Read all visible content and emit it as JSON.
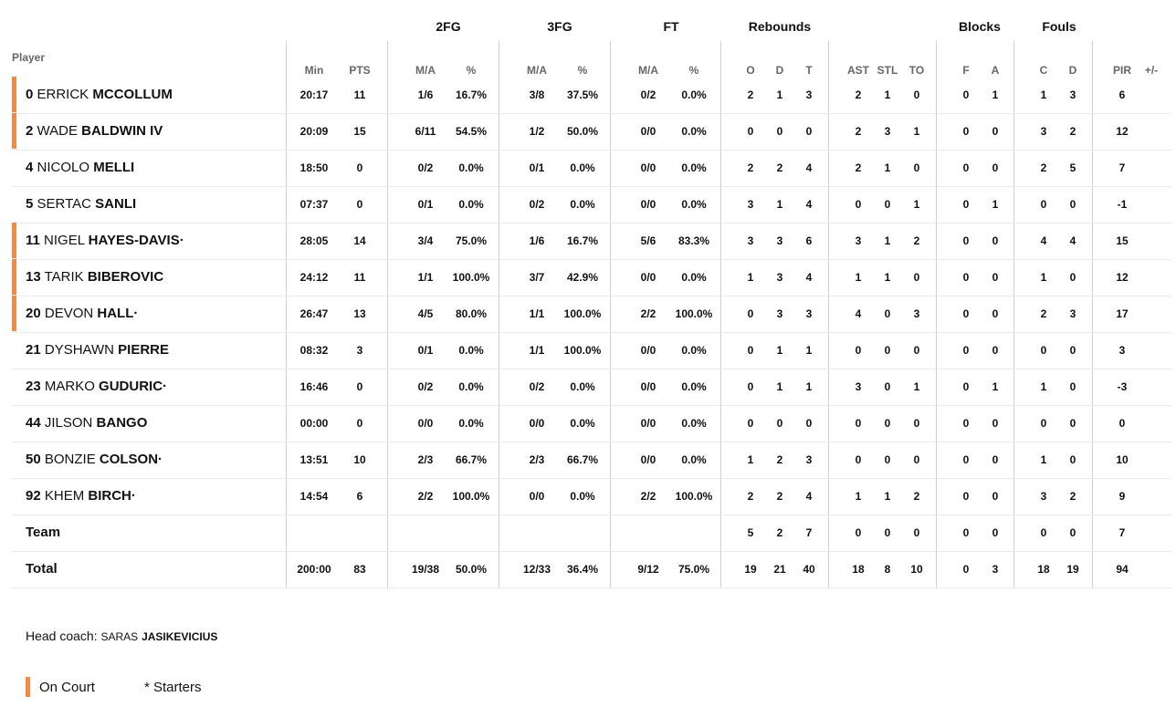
{
  "header": {
    "groups": [
      "2FG",
      "3FG",
      "FT",
      "Rebounds",
      "Blocks",
      "Fouls"
    ],
    "player_label": "Player",
    "subheaders": [
      "Min",
      "PTS",
      "M/A",
      "%",
      "M/A",
      "%",
      "M/A",
      "%",
      "O",
      "D",
      "T",
      "AST",
      "STL",
      "TO",
      "F",
      "A",
      "C",
      "D",
      "PIR",
      "+/-"
    ]
  },
  "rows": [
    {
      "num": "0",
      "first": "ERRICK",
      "last": "MCCOLLUM",
      "oncourt": true,
      "stats": [
        "20:17",
        "11",
        "1/6",
        "16.7%",
        "3/8",
        "37.5%",
        "0/2",
        "0.0%",
        "2",
        "1",
        "3",
        "2",
        "1",
        "0",
        "0",
        "1",
        "1",
        "3",
        "6",
        ""
      ]
    },
    {
      "num": "2",
      "first": "WADE",
      "last": "BALDWIN IV",
      "oncourt": true,
      "stats": [
        "20:09",
        "15",
        "6/11",
        "54.5%",
        "1/2",
        "50.0%",
        "0/0",
        "0.0%",
        "0",
        "0",
        "0",
        "2",
        "3",
        "1",
        "0",
        "0",
        "3",
        "2",
        "12",
        ""
      ]
    },
    {
      "num": "4",
      "first": "NICOLO",
      "last": "MELLI",
      "oncourt": false,
      "stats": [
        "18:50",
        "0",
        "0/2",
        "0.0%",
        "0/1",
        "0.0%",
        "0/0",
        "0.0%",
        "2",
        "2",
        "4",
        "2",
        "1",
        "0",
        "0",
        "0",
        "2",
        "5",
        "7",
        ""
      ]
    },
    {
      "num": "5",
      "first": "SERTAC",
      "last": "SANLI",
      "oncourt": false,
      "stats": [
        "07:37",
        "0",
        "0/1",
        "0.0%",
        "0/2",
        "0.0%",
        "0/0",
        "0.0%",
        "3",
        "1",
        "4",
        "0",
        "0",
        "1",
        "0",
        "1",
        "0",
        "0",
        "-1",
        ""
      ]
    },
    {
      "num": "11",
      "first": "NIGEL",
      "last": "HAYES-DAVIS·",
      "oncourt": true,
      "stats": [
        "28:05",
        "14",
        "3/4",
        "75.0%",
        "1/6",
        "16.7%",
        "5/6",
        "83.3%",
        "3",
        "3",
        "6",
        "3",
        "1",
        "2",
        "0",
        "0",
        "4",
        "4",
        "15",
        ""
      ]
    },
    {
      "num": "13",
      "first": "TARIK",
      "last": "BIBEROVIC",
      "oncourt": true,
      "stats": [
        "24:12",
        "11",
        "1/1",
        "100.0%",
        "3/7",
        "42.9%",
        "0/0",
        "0.0%",
        "1",
        "3",
        "4",
        "1",
        "1",
        "0",
        "0",
        "0",
        "1",
        "0",
        "12",
        ""
      ]
    },
    {
      "num": "20",
      "first": "DEVON",
      "last": "HALL·",
      "oncourt": true,
      "stats": [
        "26:47",
        "13",
        "4/5",
        "80.0%",
        "1/1",
        "100.0%",
        "2/2",
        "100.0%",
        "0",
        "3",
        "3",
        "4",
        "0",
        "3",
        "0",
        "0",
        "2",
        "3",
        "17",
        ""
      ]
    },
    {
      "num": "21",
      "first": "DYSHAWN",
      "last": "PIERRE",
      "oncourt": false,
      "stats": [
        "08:32",
        "3",
        "0/1",
        "0.0%",
        "1/1",
        "100.0%",
        "0/0",
        "0.0%",
        "0",
        "1",
        "1",
        "0",
        "0",
        "0",
        "0",
        "0",
        "0",
        "0",
        "3",
        ""
      ]
    },
    {
      "num": "23",
      "first": "MARKO",
      "last": "GUDURIC·",
      "oncourt": false,
      "stats": [
        "16:46",
        "0",
        "0/2",
        "0.0%",
        "0/2",
        "0.0%",
        "0/0",
        "0.0%",
        "0",
        "1",
        "1",
        "3",
        "0",
        "1",
        "0",
        "1",
        "1",
        "0",
        "-3",
        ""
      ]
    },
    {
      "num": "44",
      "first": "JILSON",
      "last": "BANGO",
      "oncourt": false,
      "stats": [
        "00:00",
        "0",
        "0/0",
        "0.0%",
        "0/0",
        "0.0%",
        "0/0",
        "0.0%",
        "0",
        "0",
        "0",
        "0",
        "0",
        "0",
        "0",
        "0",
        "0",
        "0",
        "0",
        ""
      ]
    },
    {
      "num": "50",
      "first": "BONZIE",
      "last": "COLSON·",
      "oncourt": false,
      "stats": [
        "13:51",
        "10",
        "2/3",
        "66.7%",
        "2/3",
        "66.7%",
        "0/0",
        "0.0%",
        "1",
        "2",
        "3",
        "0",
        "0",
        "0",
        "0",
        "0",
        "1",
        "0",
        "10",
        ""
      ]
    },
    {
      "num": "92",
      "first": "KHEM",
      "last": "BIRCH·",
      "oncourt": false,
      "stats": [
        "14:54",
        "6",
        "2/2",
        "100.0%",
        "0/0",
        "0.0%",
        "2/2",
        "100.0%",
        "2",
        "2",
        "4",
        "1",
        "1",
        "2",
        "0",
        "0",
        "3",
        "2",
        "9",
        ""
      ]
    }
  ],
  "team_row": {
    "label": "Team",
    "stats": [
      "",
      "",
      "",
      "",
      "",
      "",
      "",
      "",
      "5",
      "2",
      "7",
      "0",
      "0",
      "0",
      "0",
      "0",
      "0",
      "0",
      "7",
      ""
    ]
  },
  "total_row": {
    "label": "Total",
    "stats": [
      "200:00",
      "83",
      "19/38",
      "50.0%",
      "12/33",
      "36.4%",
      "9/12",
      "75.0%",
      "19",
      "21",
      "40",
      "18",
      "8",
      "10",
      "0",
      "3",
      "18",
      "19",
      "94",
      ""
    ]
  },
  "coach": {
    "label": "Head coach:",
    "first": "SARAS",
    "last": "JASIKEVICIUS"
  },
  "legend": {
    "on_court": "On Court",
    "starters": "* Starters"
  },
  "colors": {
    "accent": "#f08a46"
  }
}
